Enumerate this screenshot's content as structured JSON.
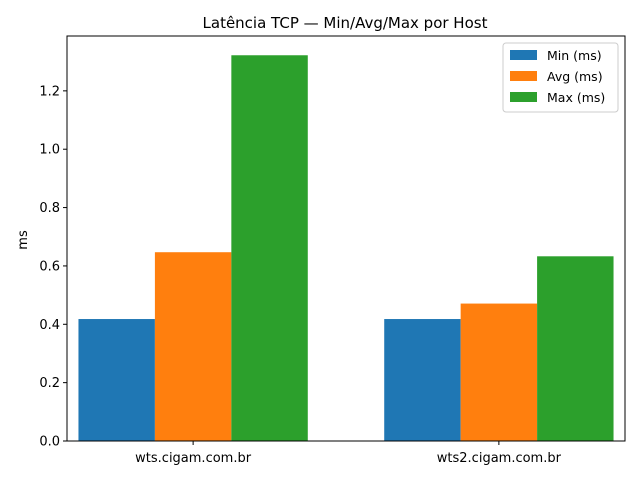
{
  "chart_data": {
    "type": "bar",
    "title": "Latência TCP — Min/Avg/Max por Host",
    "xlabel": "",
    "ylabel": "ms",
    "categories": [
      "wts.cigam.com.br",
      "wts2.cigam.com.br"
    ],
    "series": [
      {
        "name": "Min (ms)",
        "values": [
          0.418,
          0.418
        ],
        "color": "#1f77b4"
      },
      {
        "name": "Avg (ms)",
        "values": [
          0.647,
          0.471
        ],
        "color": "#ff7f0e"
      },
      {
        "name": "Max (ms)",
        "values": [
          1.322,
          0.633
        ],
        "color": "#2ca02c"
      }
    ],
    "ylim": [
      0,
      1.388
    ],
    "yticks": [
      "0.0",
      "0.2",
      "0.4",
      "0.6",
      "0.8",
      "1.0",
      "1.2"
    ],
    "grid": false,
    "legend_position": "top-right"
  }
}
